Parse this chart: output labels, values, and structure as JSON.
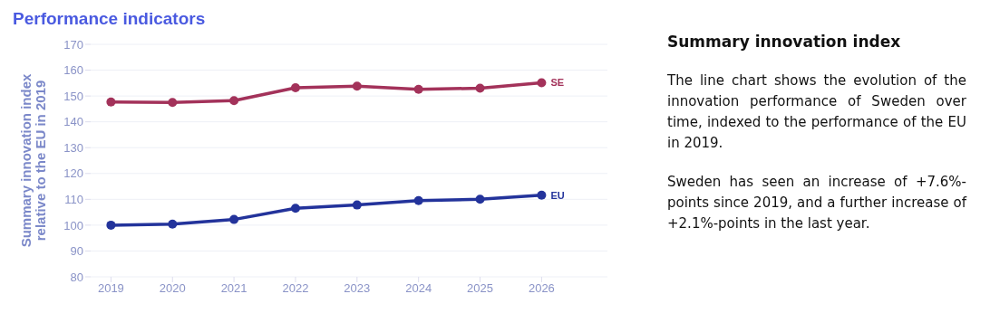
{
  "chart_data": [
    {
      "type": "line",
      "title": "Performance indicators",
      "ylabel": "Summary innovation index\nrelative to the EU in 2019",
      "categories": [
        "2019",
        "2020",
        "2021",
        "2022",
        "2023",
        "2024",
        "2025",
        "2026"
      ],
      "series": [
        {
          "name": "SE",
          "color": "#a3325a",
          "values": [
            147.7,
            147.5,
            148.2,
            153.2,
            153.8,
            152.6,
            153.0,
            155.1
          ]
        },
        {
          "name": "EU",
          "color": "#23339b",
          "values": [
            100,
            100.4,
            102.2,
            106.5,
            107.8,
            109.5,
            110.0,
            111.6
          ]
        }
      ],
      "ylim": [
        80,
        170
      ],
      "yticks": [
        80,
        90,
        100,
        110,
        120,
        130,
        140,
        150,
        160,
        170
      ],
      "grid": "y",
      "legend": false,
      "marker": "circle",
      "line_style": "solid"
    },
    {
      "type": "other",
      "title": "Summary innovation index",
      "annotations": [
        "The line chart shows the evolution of the innovation performance of Sweden over time, indexed to the performance of the EU in 2019.",
        "Sweden has seen an increase of +7.6%-points since 2019, and a further increase of +2.1%-points in the last year."
      ]
    }
  ]
}
